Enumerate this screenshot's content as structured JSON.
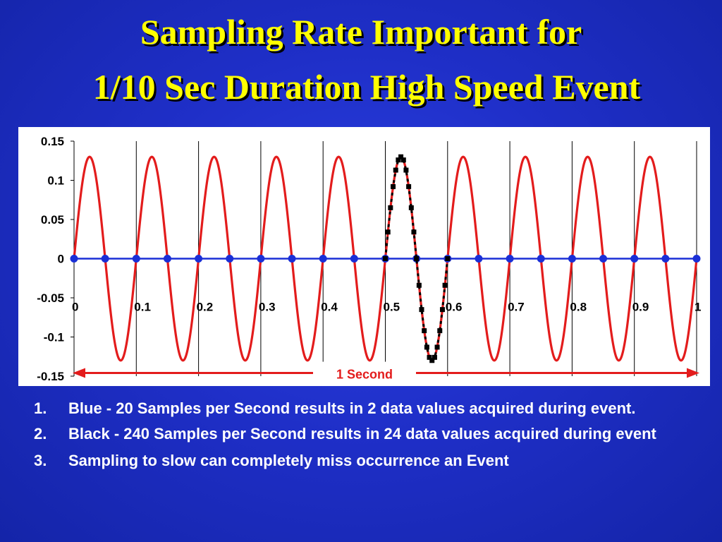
{
  "slide": {
    "title_line1": "Sampling Rate Important for",
    "title_line2": "1/10 Sec Duration High Speed Event",
    "bullets": [
      {
        "num": "1.",
        "text": "Blue - 20 Samples per Second results in 2 data values acquired during event."
      },
      {
        "num": "2.",
        "text": "Black - 240 Samples per Second results in 24 data values acquired during event"
      },
      {
        "num": "3.",
        "text": "Sampling to slow can completely miss occurrence an Event"
      }
    ]
  },
  "chart_data": {
    "type": "line",
    "title": "",
    "xlabel": "",
    "ylabel": "",
    "xlim": [
      0,
      1
    ],
    "ylim": [
      -0.15,
      0.15
    ],
    "y_ticks": [
      "0.15",
      "0.1",
      "0.05",
      "0",
      "-0.05",
      "-0.1",
      "-0.15"
    ],
    "x_ticks": [
      "0",
      "0.1",
      "0.2",
      "0.3",
      "0.4",
      "0.5",
      "0.6",
      "0.7",
      "0.8",
      "0.9",
      "1"
    ],
    "grid": "vertical",
    "series": [
      {
        "color": "#e31c1c",
        "style": "solid",
        "function": "0.13*sin(2*pi*10*x)",
        "amplitude": 0.13,
        "frequency_hz": 10
      },
      {
        "color": "#1a2fd6",
        "style": "dots",
        "sample_rate_hz": 20,
        "x": [
          0,
          0.05,
          0.1,
          0.15,
          0.2,
          0.25,
          0.3,
          0.35,
          0.4,
          0.45,
          0.5,
          0.55,
          0.6,
          0.65,
          0.7,
          0.75,
          0.8,
          0.85,
          0.9,
          0.95,
          1.0
        ],
        "y": [
          0,
          0,
          0,
          0,
          0,
          0,
          0,
          0,
          0,
          0,
          0,
          0,
          0,
          0,
          0,
          0,
          0,
          0,
          0,
          0,
          0
        ]
      },
      {
        "color": "#000000",
        "style": "dashed-dots",
        "sample_rate_hz": 240,
        "x_range": [
          0.5,
          0.6
        ],
        "x": [
          0.5,
          0.5042,
          0.5083,
          0.5125,
          0.5167,
          0.5208,
          0.525,
          0.5292,
          0.5333,
          0.5375,
          0.5417,
          0.5458,
          0.55,
          0.5542,
          0.5583,
          0.5625,
          0.5667,
          0.5708,
          0.575,
          0.5792,
          0.5833,
          0.5875,
          0.5917,
          0.5958,
          0.6
        ],
        "y": [
          0,
          0.034,
          0.065,
          0.092,
          0.113,
          0.126,
          0.13,
          0.126,
          0.113,
          0.092,
          0.065,
          0.034,
          0,
          -0.034,
          -0.065,
          -0.092,
          -0.113,
          -0.126,
          -0.13,
          -0.126,
          -0.113,
          -0.092,
          -0.065,
          -0.034,
          0
        ]
      }
    ],
    "annotation": {
      "text": "1 Second",
      "color": "#e31c1c",
      "arrow_from": 0,
      "arrow_to": 1
    }
  }
}
